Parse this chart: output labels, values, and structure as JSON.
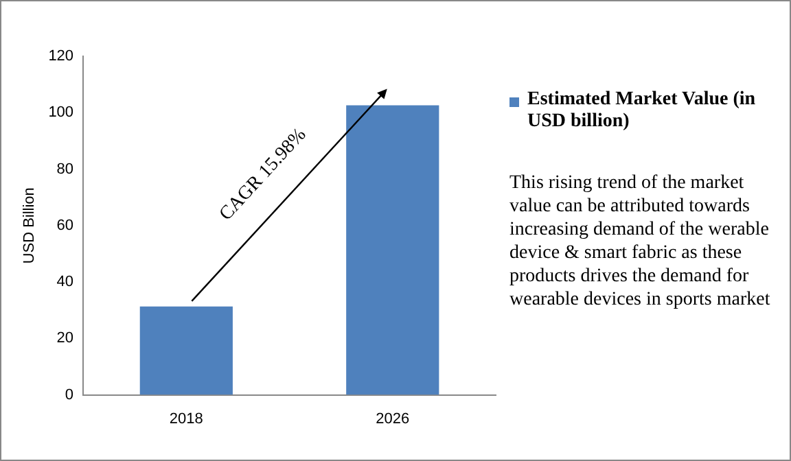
{
  "chart_data": {
    "type": "bar",
    "categories": [
      "2018",
      "2026"
    ],
    "series": [
      {
        "name": "Estimated Market Value (in USD billion)",
        "color": "#4f81bd",
        "values": [
          31.3,
          102.6
        ]
      }
    ],
    "ylabel": "USD Billion",
    "ylim": [
      0,
      120
    ],
    "yticks": [
      0,
      20,
      40,
      60,
      80,
      100,
      120
    ],
    "grid": false,
    "legend": "right",
    "annotations": [
      "CAGR 15.98%",
      "This rising trend of the market value can be attributed towards increasing demand of the werable device & smart fabric as these products drives the demand for wearable devices in sports market"
    ]
  }
}
